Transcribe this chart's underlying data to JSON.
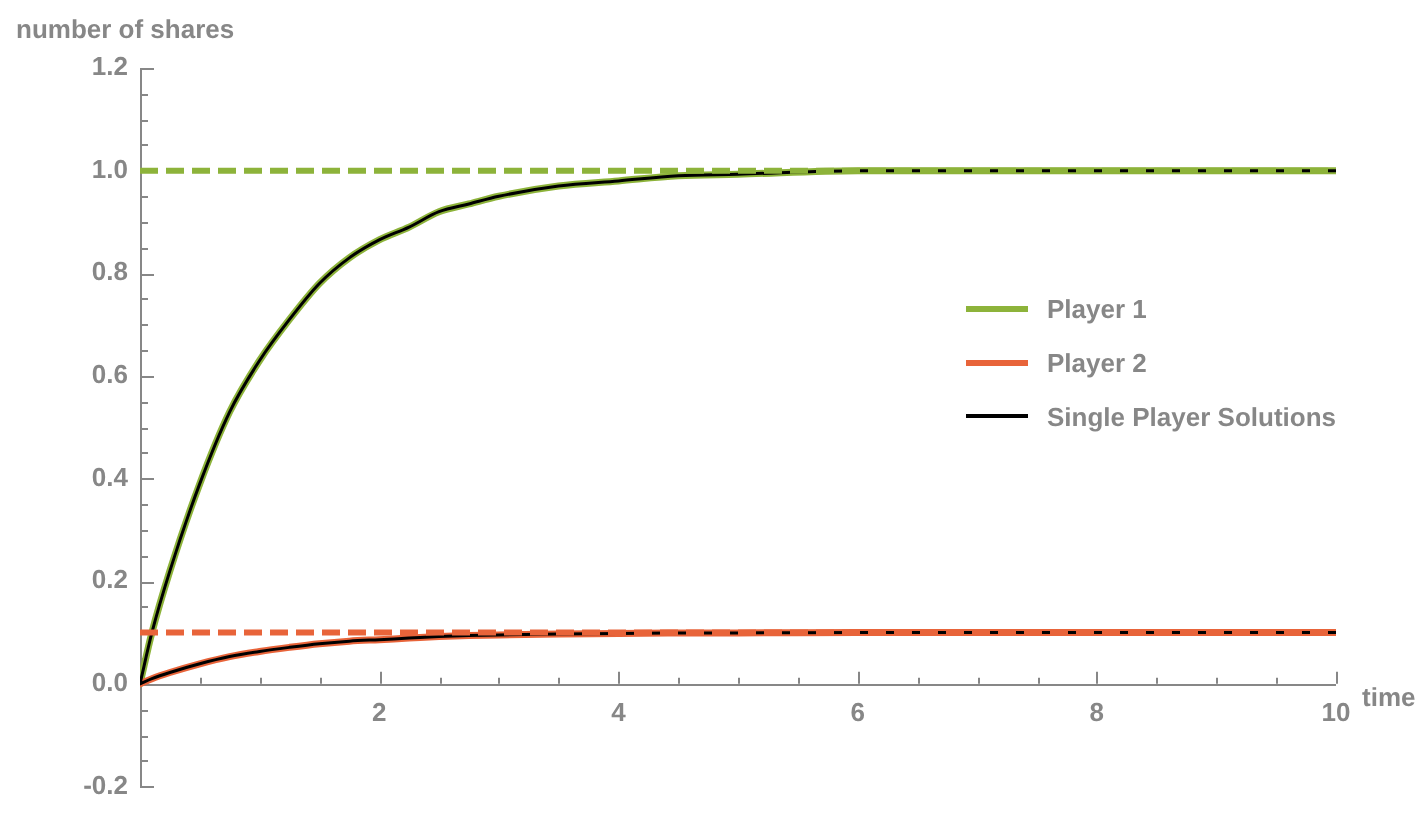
{
  "chart_data": {
    "type": "line",
    "xlabel": "time",
    "ylabel": "number of shares",
    "x": [
      0,
      0.1,
      0.25,
      0.5,
      0.75,
      1,
      1.25,
      1.5,
      1.75,
      2,
      2.25,
      2.5,
      2.75,
      3,
      3.5,
      4,
      4.5,
      5,
      6,
      7,
      8,
      9,
      10
    ],
    "series": [
      {
        "name": "Player 1",
        "color": "#8db33a",
        "values": [
          0,
          0.1,
          0.22,
          0.39,
          0.53,
          0.63,
          0.71,
          0.78,
          0.83,
          0.865,
          0.89,
          0.92,
          0.935,
          0.95,
          0.97,
          0.98,
          0.99,
          0.993,
          1,
          1,
          1,
          1,
          1
        ]
      },
      {
        "name": "Player 2",
        "color": "#e8643a",
        "values": [
          0,
          0.01,
          0.022,
          0.039,
          0.053,
          0.063,
          0.071,
          0.078,
          0.083,
          0.086,
          0.089,
          0.092,
          0.094,
          0.095,
          0.097,
          0.098,
          0.099,
          0.099,
          0.1,
          0.1,
          0.1,
          0.1,
          0.1
        ]
      },
      {
        "name": "Single Player Solutions",
        "color": "#000000",
        "values": [
          0,
          0.1,
          0.22,
          0.39,
          0.53,
          0.63,
          0.71,
          0.78,
          0.83,
          0.865,
          0.89,
          0.92,
          0.935,
          0.95,
          0.97,
          0.98,
          0.99,
          0.993,
          1,
          1,
          1,
          1,
          1
        ]
      },
      {
        "color": "#000000",
        "values": [
          0,
          0.01,
          0.022,
          0.039,
          0.053,
          0.063,
          0.071,
          0.078,
          0.083,
          0.086,
          0.089,
          0.092,
          0.094,
          0.095,
          0.097,
          0.098,
          0.099,
          0.099,
          0.1,
          0.1,
          0.1,
          0.1,
          0.1
        ]
      }
    ],
    "xlim": [
      0,
      10
    ],
    "ylim": [
      -0.2,
      1.2
    ],
    "xticks": [
      {
        "value": 0.5,
        "label": null
      },
      {
        "value": 1,
        "label": null
      },
      {
        "value": 1.5,
        "label": null
      },
      2,
      {
        "value": 2.5,
        "label": null
      },
      {
        "value": 3,
        "label": null
      },
      {
        "value": 3.5,
        "label": null
      },
      4,
      {
        "value": 4.5,
        "label": null
      },
      {
        "value": 5,
        "label": null
      },
      {
        "value": 5.5,
        "label": null
      },
      6,
      {
        "value": 6.5,
        "label": null
      },
      {
        "value": 7,
        "label": null
      },
      {
        "value": 7.5,
        "label": null
      },
      8,
      {
        "value": 8.5,
        "label": null
      },
      {
        "value": 9,
        "label": null
      },
      {
        "value": 9.5,
        "label": null
      },
      10
    ],
    "yticks": [
      -0.2,
      {
        "value": -0.15,
        "label": null
      },
      {
        "value": -0.1,
        "label": null
      },
      {
        "value": -0.05,
        "label": null
      },
      {
        "value": 0,
        "label": "0.0"
      },
      {
        "value": 0.05,
        "label": null
      },
      {
        "value": 0.1,
        "label": null
      },
      {
        "value": 0.15,
        "label": null
      },
      0.2,
      {
        "value": 0.25,
        "label": null
      },
      {
        "value": 0.3,
        "label": null
      },
      {
        "value": 0.35,
        "label": null
      },
      0.4,
      {
        "value": 0.45,
        "label": null
      },
      {
        "value": 0.5,
        "label": null
      },
      {
        "value": 0.55,
        "label": null
      },
      0.6,
      {
        "value": 0.65,
        "label": null
      },
      {
        "value": 0.7,
        "label": null
      },
      {
        "value": 0.75,
        "label": null
      },
      0.8,
      {
        "value": 0.85,
        "label": null
      },
      {
        "value": 0.9,
        "label": null
      },
      {
        "value": 0.95,
        "label": null
      },
      {
        "value": 1,
        "label": "1.0"
      },
      {
        "value": 1.05,
        "label": null
      },
      {
        "value": 1.1,
        "label": null
      },
      {
        "value": 1.15,
        "label": null
      },
      1.2
    ],
    "ref_lines": [
      {
        "axis": "y",
        "value": 1,
        "color": "#8db33a",
        "line_style": "dashed"
      },
      {
        "axis": "y",
        "value": 0.1,
        "color": "#e8643a",
        "line_style": "dashed"
      }
    ],
    "grid": false,
    "legend": "right",
    "marker": "none",
    "line_style": "solid"
  }
}
